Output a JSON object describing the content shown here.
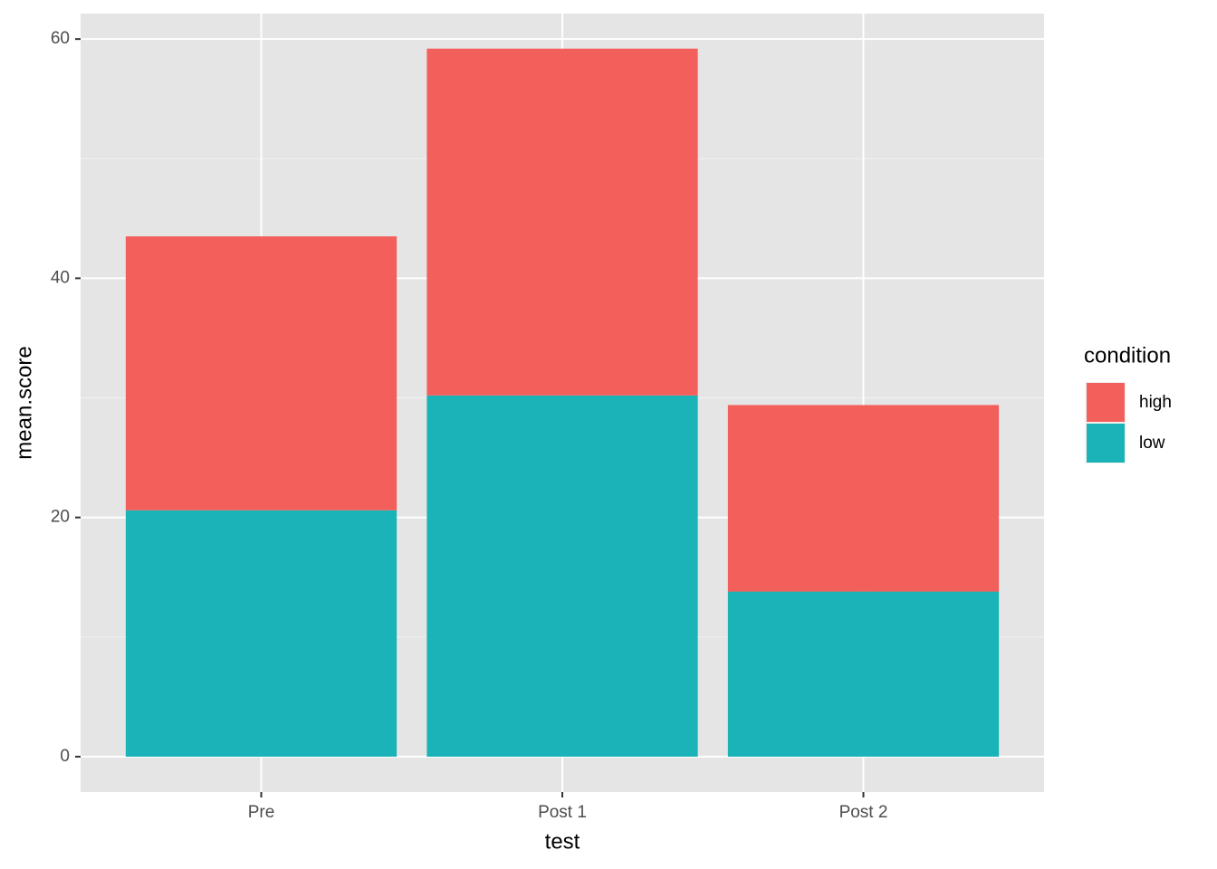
{
  "chart_data": {
    "type": "stacked_bar",
    "x_label": "test",
    "y_label": "mean.score",
    "categories": [
      "Pre",
      "Post 1",
      "Post 2"
    ],
    "series": [
      {
        "name": "high",
        "color": "#f35f5b",
        "values": [
          22.9,
          29.0,
          15.6
        ]
      },
      {
        "name": "low",
        "color": "#1ab3b7",
        "values": [
          20.6,
          30.2,
          13.8
        ]
      }
    ],
    "stack_order": [
      "low",
      "high"
    ],
    "ylim": [
      -2.96,
      62.13
    ],
    "yticks": [
      0,
      20,
      40,
      60
    ],
    "minor_yticks": [
      10,
      30,
      50
    ],
    "grid": true,
    "legend_title": "condition",
    "legend_position": "right"
  }
}
